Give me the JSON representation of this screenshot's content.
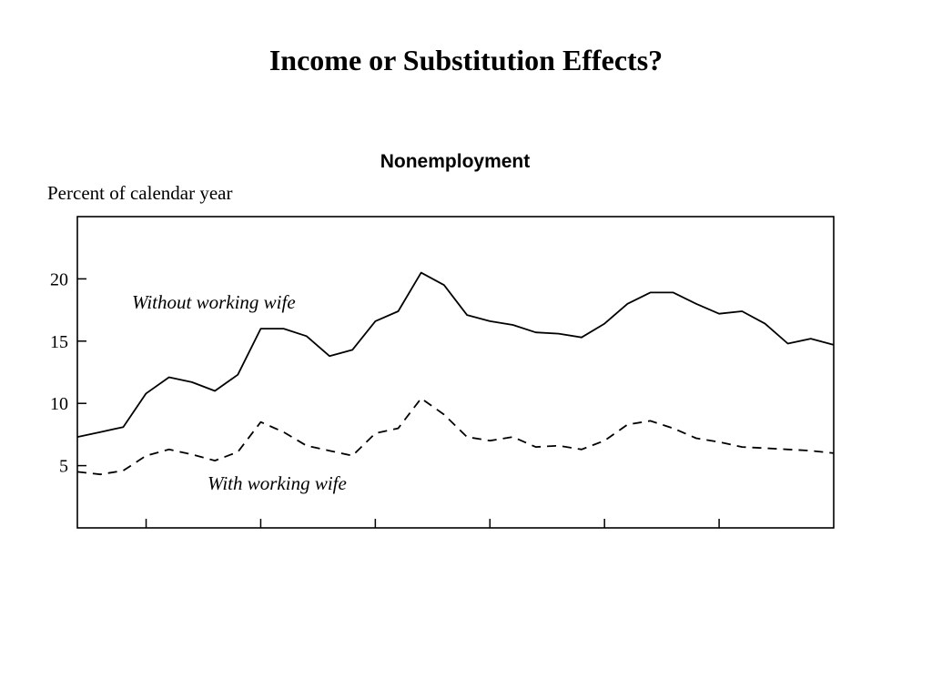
{
  "slide": {
    "title": "Income or Substitution Effects?"
  },
  "chart_data": {
    "type": "line",
    "title": "Nonemployment",
    "ylabel": "Percent of calendar year",
    "xlabel": "",
    "ylim": [
      0,
      25
    ],
    "xlim": [
      0,
      33
    ],
    "yticks": [
      5,
      10,
      15,
      20
    ],
    "ytick_labels": [
      "5",
      "10",
      "15",
      "20"
    ],
    "xticks": [
      3,
      8,
      13,
      18,
      23,
      28
    ],
    "xtick_labels": [
      "",
      "",
      "",
      "",
      "",
      ""
    ],
    "grid": false,
    "colors": {
      "line": "#000000",
      "axis": "#000000"
    },
    "x": [
      0,
      1,
      2,
      3,
      4,
      5,
      6,
      7,
      8,
      9,
      10,
      11,
      12,
      13,
      14,
      15,
      16,
      17,
      18,
      19,
      20,
      21,
      22,
      23,
      24,
      25,
      26,
      27,
      28,
      29,
      30,
      31,
      32,
      33
    ],
    "series": [
      {
        "name": "Without working wife",
        "style": "solid",
        "values": [
          7.3,
          7.7,
          8.1,
          10.8,
          12.1,
          11.7,
          11.0,
          12.3,
          16.0,
          16.0,
          15.4,
          13.8,
          14.3,
          16.6,
          17.4,
          20.5,
          19.5,
          17.1,
          16.6,
          16.3,
          15.7,
          15.6,
          15.3,
          16.4,
          18.0,
          18.9,
          18.9,
          18.0,
          17.2,
          17.4,
          16.4,
          14.8,
          15.2,
          14.7
        ]
      },
      {
        "name": "With working wife",
        "style": "dashed",
        "values": [
          4.5,
          4.3,
          4.6,
          5.8,
          6.3,
          5.9,
          5.4,
          6.1,
          8.5,
          7.7,
          6.6,
          6.2,
          5.8,
          7.6,
          8.0,
          10.4,
          9.1,
          7.3,
          7.0,
          7.3,
          6.5,
          6.6,
          6.3,
          7.0,
          8.3,
          8.6,
          8.0,
          7.2,
          6.9,
          6.5,
          6.4,
          6.3,
          6.2,
          6.0
        ]
      }
    ]
  }
}
